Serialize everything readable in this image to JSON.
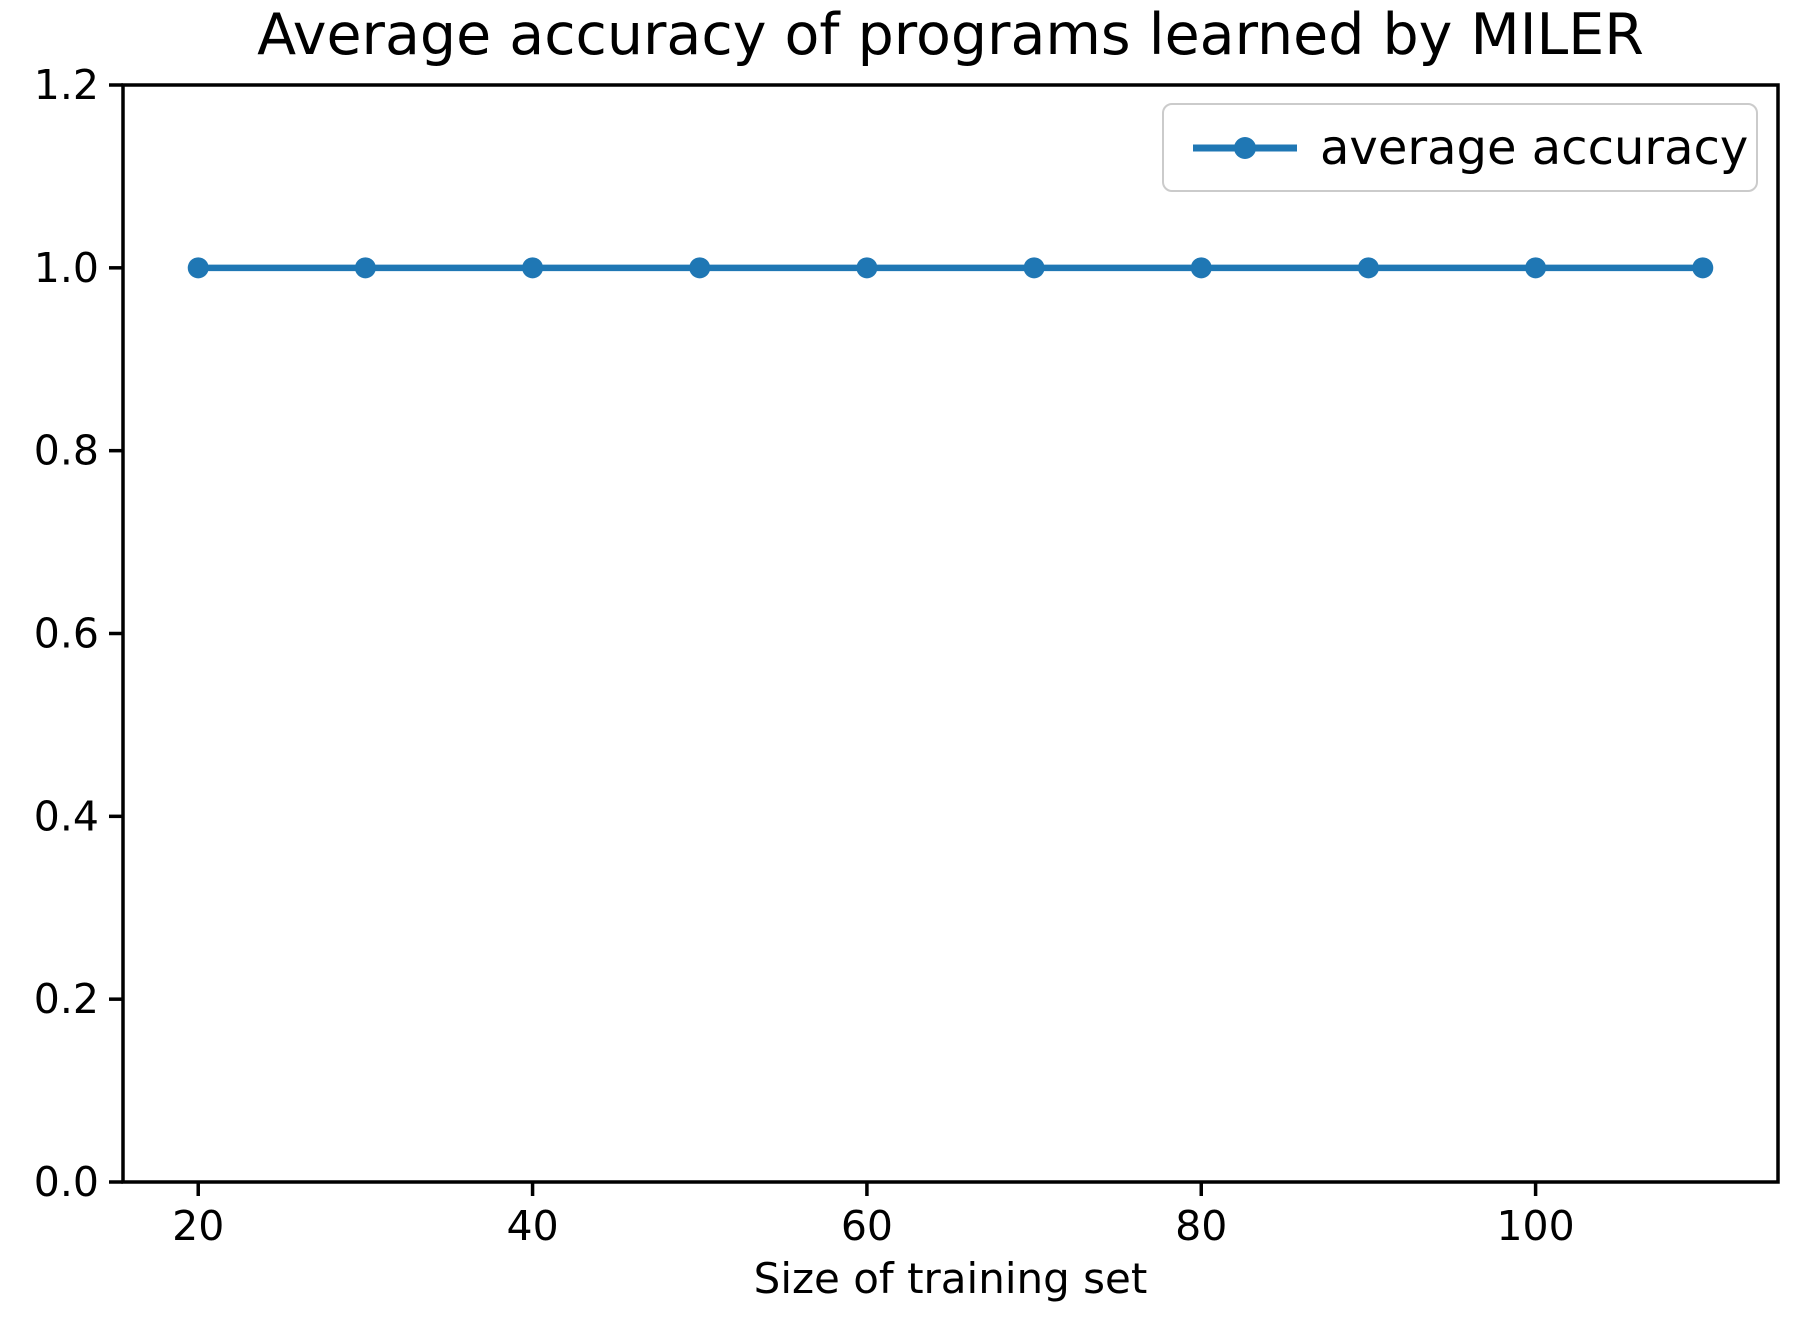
{
  "chart_data": {
    "type": "line",
    "title": "Average accuracy of programs learned by MILER",
    "xlabel": "Size of training set",
    "x": [
      20,
      30,
      40,
      50,
      60,
      70,
      80,
      90,
      100,
      110
    ],
    "series": [
      {
        "name": "average accuracy",
        "values": [
          1.0,
          1.0,
          1.0,
          1.0,
          1.0,
          1.0,
          1.0,
          1.0,
          1.0,
          1.0
        ],
        "color": "#1f77b4",
        "marker": "circle"
      }
    ],
    "xlim": [
      15.5,
      114.5
    ],
    "ylim": [
      0.0,
      1.2
    ],
    "xtick_labels": [
      "20",
      "40",
      "60",
      "80",
      "100"
    ],
    "xtick_values": [
      20,
      40,
      60,
      80,
      100
    ],
    "ytick_labels": [
      "0.0",
      "0.2",
      "0.4",
      "0.6",
      "0.8",
      "1.0",
      "1.2"
    ],
    "ytick_values": [
      0.0,
      0.2,
      0.4,
      0.6,
      0.8,
      1.0,
      1.2
    ],
    "grid": false,
    "legend_position": "upper right"
  }
}
